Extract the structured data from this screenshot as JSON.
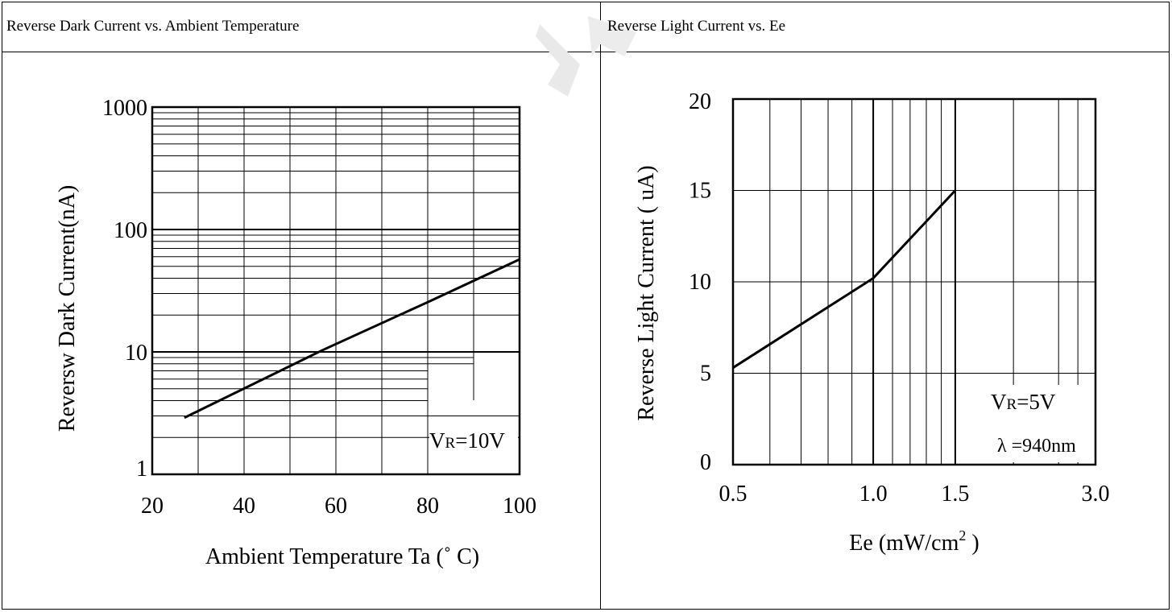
{
  "panels": [
    {
      "title": "Reverse Dark Current vs. Ambient Temperature"
    },
    {
      "title": "Reverse Light Current vs. Ee"
    }
  ],
  "chart_data": [
    {
      "type": "line",
      "title": "Reverse Dark Current vs. Ambient Temperature",
      "xlabel": "Ambient Temperature Ta (˚ C)",
      "ylabel": "Reversw Dark Current(nA)",
      "x_scale": "linear",
      "y_scale": "log",
      "xlim": [
        20,
        100
      ],
      "ylim": [
        1,
        1000
      ],
      "x_ticks": [
        "20",
        "40",
        "60",
        "80",
        "100"
      ],
      "y_ticks": [
        "1",
        "10",
        "100",
        "1000"
      ],
      "grid": true,
      "annotation": {
        "main": "V",
        "sub": "R",
        "rest": "=10V"
      },
      "series": [
        {
          "x": [
            27,
            57,
            80,
            100
          ],
          "y": [
            2.9,
            10.3,
            25.5,
            57
          ]
        }
      ]
    },
    {
      "type": "line",
      "title": "Reverse Light Current vs. Ee",
      "xlabel": "Ee (mW/cm²)",
      "xlabel_main": "Ee  (mW/cm",
      "xlabel_sup": "2",
      "xlabel_end": ")",
      "ylabel": "Reverse Light Current ( uA)",
      "x_scale": "log",
      "y_scale": "linear",
      "xlim": [
        0.5,
        3.0
      ],
      "ylim": [
        0,
        20
      ],
      "x_ticks": [
        "0.5",
        "1.0",
        "1.5",
        "3.0"
      ],
      "y_ticks": [
        "0",
        "5",
        "10",
        "15",
        "20"
      ],
      "grid": true,
      "annotation": {
        "main": "V",
        "sub": "R",
        "rest": "=5V",
        "line2": "λ =940nm"
      },
      "series": [
        {
          "x": [
            0.5,
            1.0,
            1.5
          ],
          "y": [
            5.3,
            10.2,
            15
          ]
        }
      ]
    }
  ]
}
